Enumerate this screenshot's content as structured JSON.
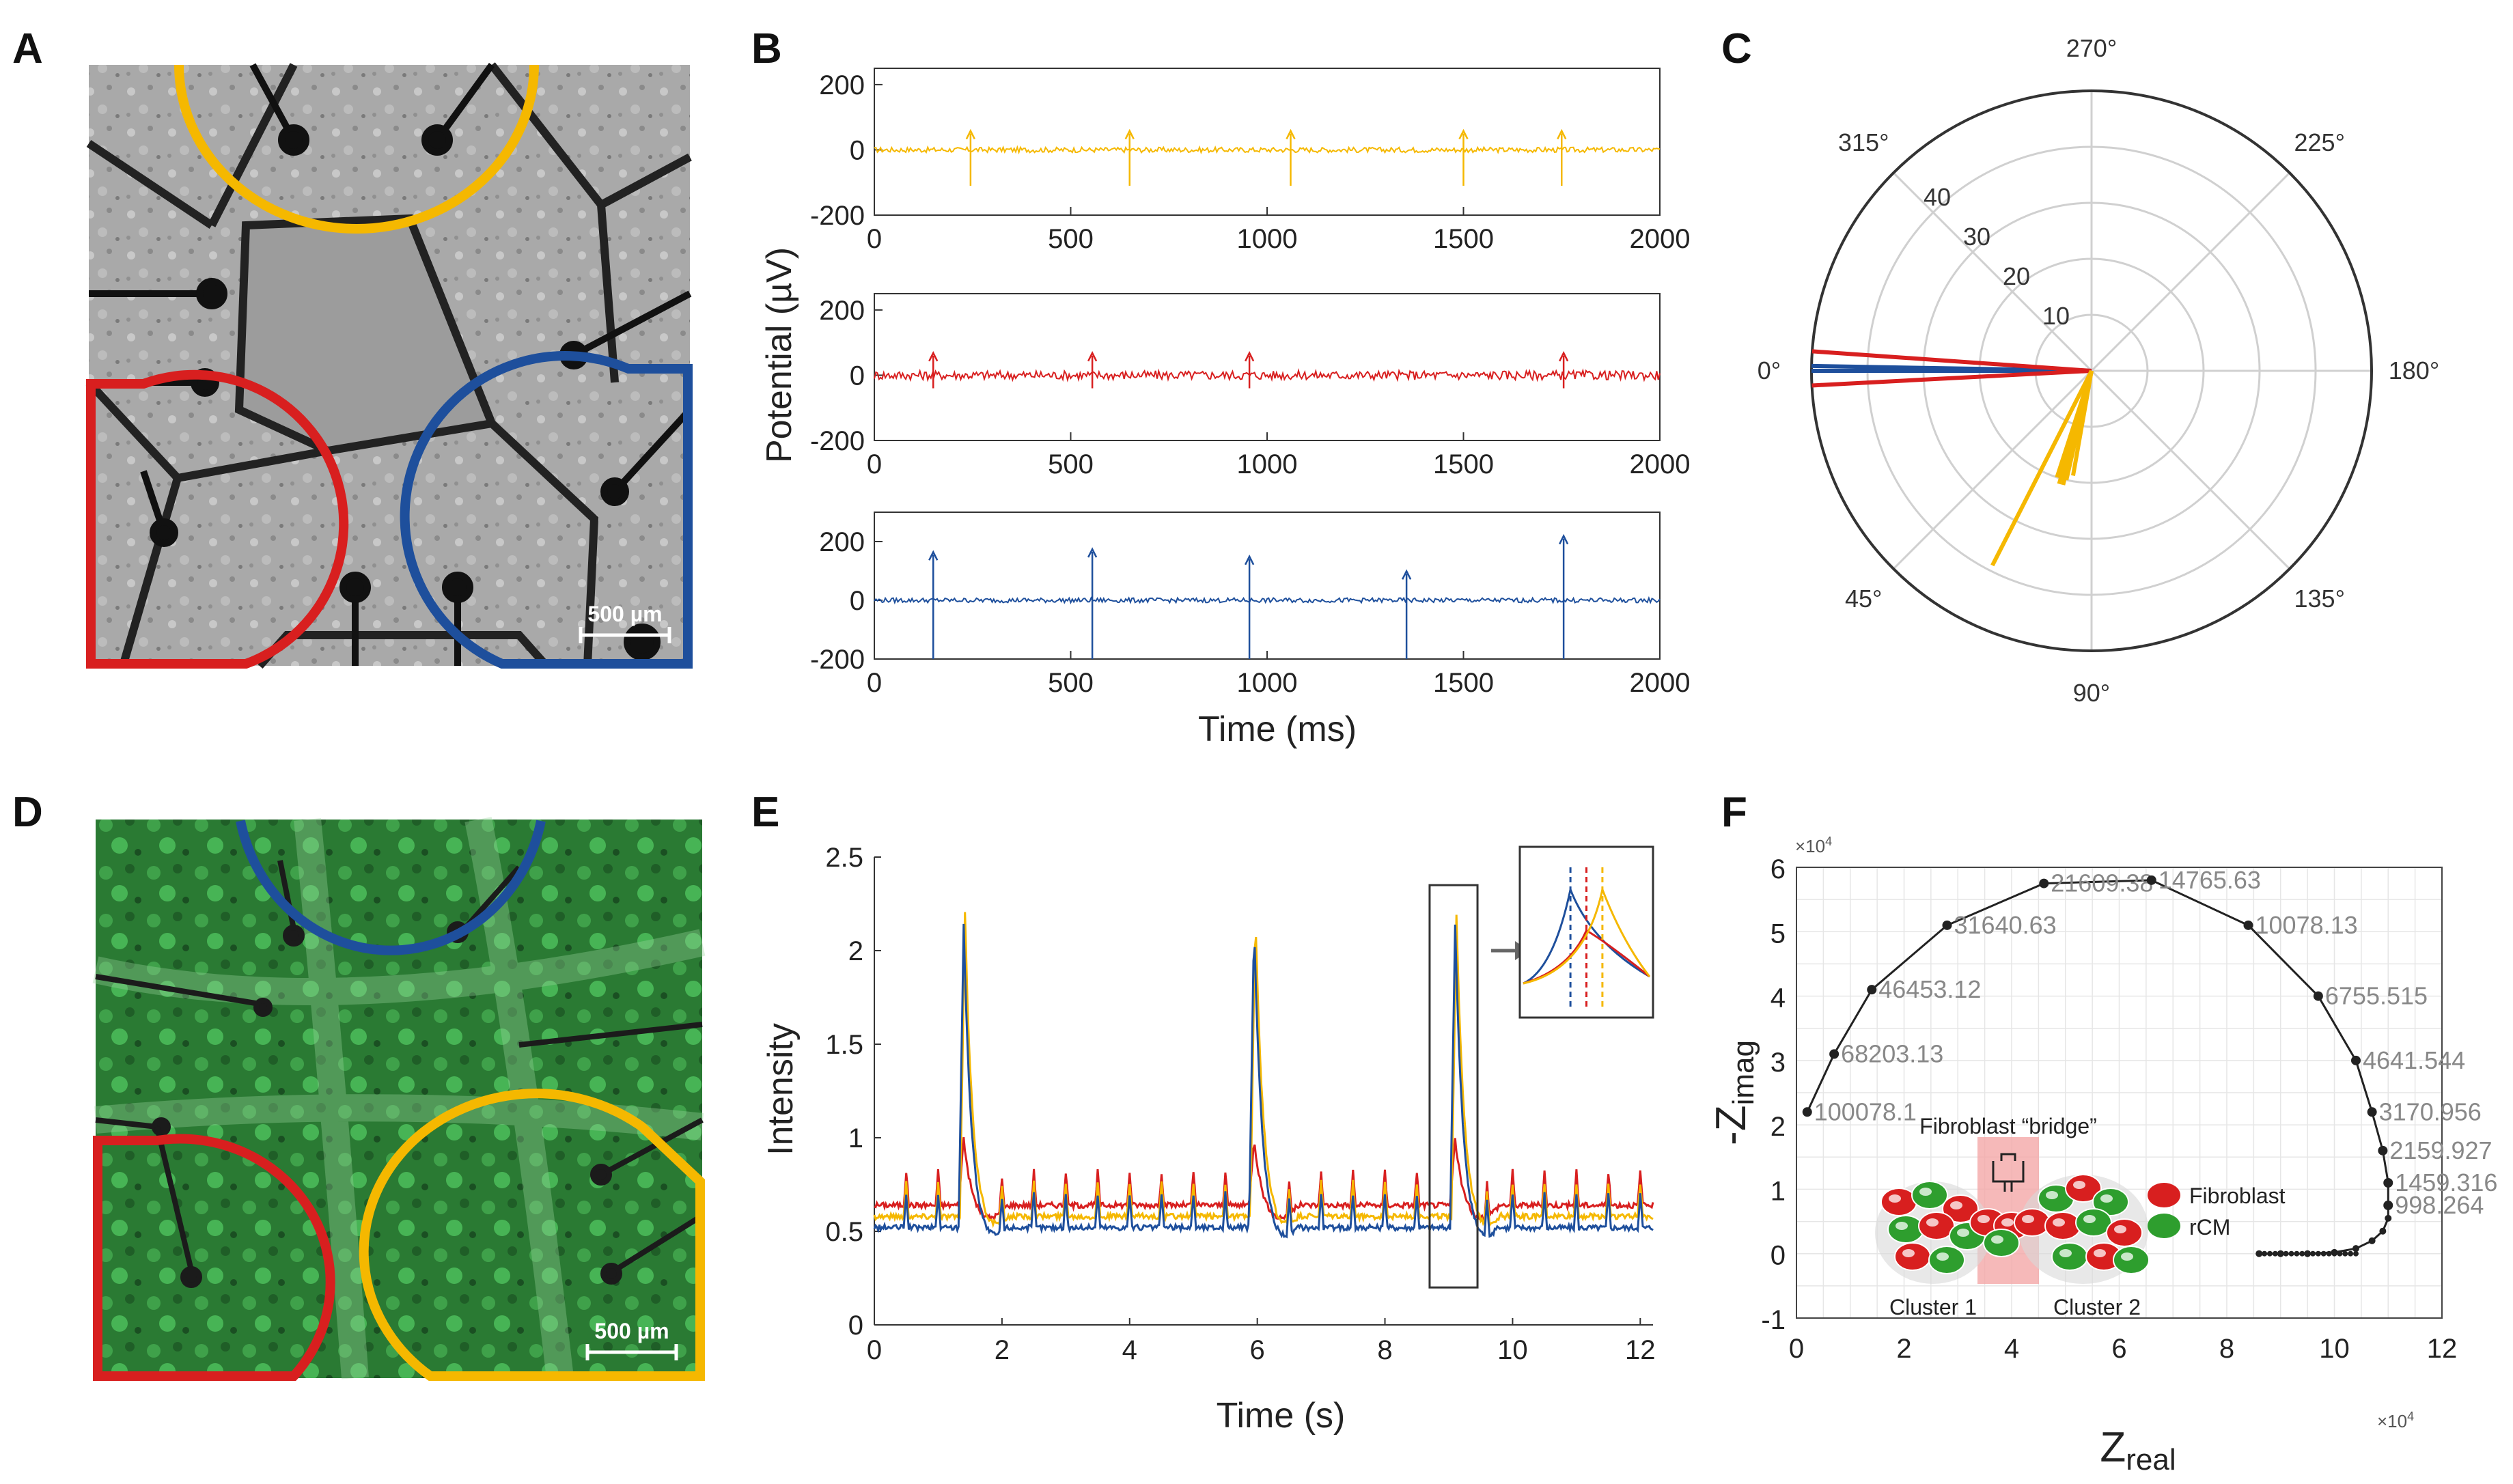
{
  "panel_labels": [
    "A",
    "B",
    "C",
    "D",
    "E",
    "F"
  ],
  "colors": {
    "yellow": "#f5b800",
    "red": "#d81f1f",
    "blue": "#1e4f9c",
    "green_cell": "#2e9e2e"
  },
  "panel_a": {
    "scale_bar": "500 µm",
    "image": "brightfield micrograph of MEA with three cell clusters",
    "regions": [
      "yellow",
      "red",
      "blue"
    ]
  },
  "panel_d": {
    "scale_bar": "500 µm",
    "image": "green fluorescence micrograph",
    "regions": [
      "blue",
      "red",
      "yellow"
    ]
  },
  "chart_data": [
    {
      "panel": "B",
      "type": "line",
      "ylabel": "Potential (µV)",
      "xlabel": "Time (ms)",
      "xlim": [
        0,
        2000
      ],
      "xticks": [
        "0",
        "500",
        "1000",
        "1500",
        "2000"
      ],
      "subplots": [
        {
          "color": "#f5b800",
          "ylim": [
            -200,
            250
          ],
          "yticks": [
            "200",
            "0",
            "-200"
          ],
          "spikes_ms": [
            245,
            650,
            1060,
            1500,
            1750
          ],
          "spike_up": 50,
          "spike_down": -110
        },
        {
          "color": "#d81f1f",
          "ylim": [
            -200,
            250
          ],
          "yticks": [
            "200",
            "0",
            "-200"
          ],
          "spikes_ms": [
            150,
            555,
            955,
            1755
          ],
          "spike_up": 60,
          "spike_down": -40
        },
        {
          "color": "#1e4f9c",
          "ylim": [
            -200,
            300
          ],
          "yticks": [
            "200",
            "0",
            "-200"
          ],
          "spikes_ms": [
            150,
            555,
            955,
            1355,
            1755
          ],
          "spike_up": [
            155,
            165,
            140,
            90,
            210
          ],
          "spike_down": -200
        }
      ]
    },
    {
      "panel": "C",
      "type": "polar",
      "angle_labels": [
        "270°",
        "225°",
        "180°",
        "135°",
        "90°",
        "45°",
        "0°",
        "315°"
      ],
      "radial_ticks": [
        "10",
        "20",
        "30",
        "40"
      ],
      "rmax": 50,
      "series": [
        {
          "color": "#1e4f9c",
          "angles_deg": [
            0,
            359
          ],
          "magnitudes": [
            50,
            50
          ]
        },
        {
          "color": "#d81f1f",
          "angles_deg": [
            356,
            3
          ],
          "magnitudes": [
            50,
            50
          ]
        },
        {
          "color": "#f5b800",
          "angles_deg": [
            72,
            74,
            77,
            80,
            76,
            63
          ],
          "magnitudes": [
            20,
            21,
            20,
            19,
            21,
            39
          ]
        }
      ]
    },
    {
      "panel": "E",
      "type": "line",
      "ylabel": "Intensity",
      "xlabel": "Time (s)",
      "xlim": [
        0,
        12.2
      ],
      "ylim": [
        0,
        2.5
      ],
      "xticks": [
        "0",
        "2",
        "4",
        "6",
        "8",
        "10",
        "12"
      ],
      "yticks": [
        "0",
        "0.5",
        "1",
        "1.5",
        "2",
        "2.5"
      ],
      "big_peaks_s": [
        1.4,
        5.95,
        9.1
      ],
      "small_peaks_s": [
        0.5,
        1.0,
        2.0,
        2.5,
        3.0,
        3.5,
        4.0,
        4.5,
        5.0,
        5.5,
        6.5,
        7.0,
        7.5,
        8.0,
        8.5,
        9.6,
        10.0,
        10.5,
        11.0,
        11.5,
        12.0
      ],
      "series": [
        {
          "name": "red",
          "color": "#d81f1f",
          "baseline": 0.64,
          "peak": 1.0
        },
        {
          "name": "yellow",
          "color": "#f5b800",
          "baseline": 0.58,
          "peak": 2.2
        },
        {
          "name": "blue",
          "color": "#1e4f9c",
          "baseline": 0.52,
          "peak": 2.15
        }
      ]
    },
    {
      "panel": "F",
      "type": "scatter",
      "xlabel": "Z",
      "xlabel_sub": "real",
      "ylabel": "-Z",
      "ylabel_sub": "imag",
      "x_exp": "×10",
      "x_exp_sup": "4",
      "y_exp": "×10",
      "y_exp_sup": "4",
      "xlim": [
        0,
        12
      ],
      "ylim": [
        -1,
        6
      ],
      "xticks": [
        "0",
        "2",
        "4",
        "6",
        "8",
        "10",
        "12"
      ],
      "yticks": [
        "-1",
        "0",
        "1",
        "2",
        "3",
        "4",
        "5",
        "6"
      ],
      "points": [
        {
          "x": 0.2,
          "y": 2.2,
          "label": "100078.1"
        },
        {
          "x": 0.7,
          "y": 3.1,
          "label": "68203.13"
        },
        {
          "x": 1.4,
          "y": 4.1,
          "label": "46453.12"
        },
        {
          "x": 2.8,
          "y": 5.1,
          "label": "31640.63"
        },
        {
          "x": 4.6,
          "y": 5.75,
          "label": "21609.38"
        },
        {
          "x": 6.6,
          "y": 5.8,
          "label": "14765.63"
        },
        {
          "x": 8.4,
          "y": 5.1,
          "label": "10078.13"
        },
        {
          "x": 9.7,
          "y": 4.0,
          "label": "6755.515"
        },
        {
          "x": 10.4,
          "y": 3.0,
          "label": "4641.544"
        },
        {
          "x": 10.7,
          "y": 2.2,
          "label": "3170.956"
        },
        {
          "x": 10.9,
          "y": 1.6,
          "label": "2159.927"
        },
        {
          "x": 11.0,
          "y": 1.1,
          "label": "1459.316"
        },
        {
          "x": 11.0,
          "y": 0.75,
          "label": "998.264"
        }
      ],
      "inset": {
        "bridge_label": "Fibroblast “bridge”",
        "cluster1": "Cluster 1",
        "cluster2": "Cluster 2",
        "legend": [
          "Fibroblast",
          "rCM"
        ]
      }
    }
  ]
}
